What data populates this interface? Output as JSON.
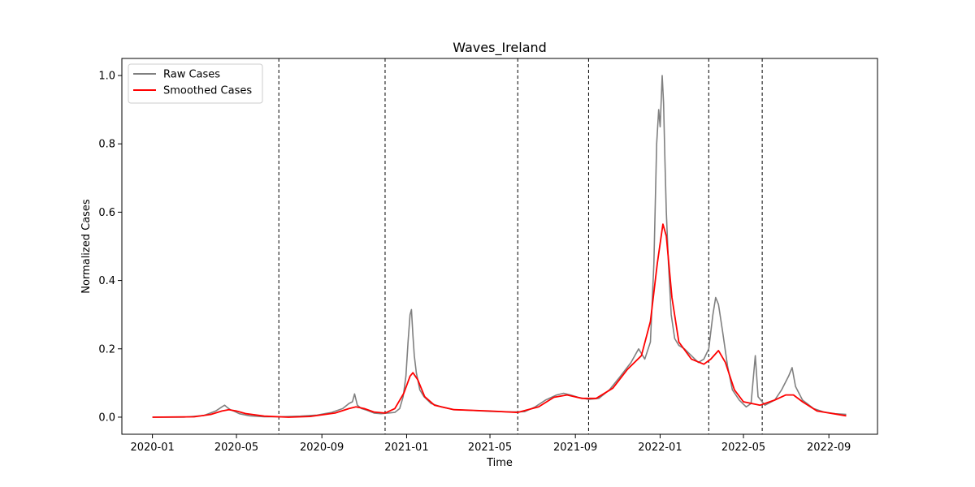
{
  "chart_data": {
    "type": "line",
    "title": "Waves_Ireland",
    "xlabel": "Time",
    "ylabel": "Normalized Cases",
    "x_range": [
      "2019-11-18",
      "2022-11-10"
    ],
    "ylim": [
      -0.05,
      1.05
    ],
    "grid": false,
    "legend_position": "top-left",
    "xticks": [
      "2020-01",
      "2020-05",
      "2020-09",
      "2021-01",
      "2021-05",
      "2021-09",
      "2022-01",
      "2022-05",
      "2022-09"
    ],
    "yticks": [
      "0.0",
      "0.2",
      "0.4",
      "0.6",
      "0.8",
      "1.0"
    ],
    "wave_boundaries": [
      "2020-07-01",
      "2020-12-01",
      "2021-06-10",
      "2021-09-20",
      "2022-03-12",
      "2022-05-28"
    ],
    "series": [
      {
        "name": "Raw Cases",
        "color": "#808080",
        "points": [
          [
            "2020-01-01",
            0.0
          ],
          [
            "2020-02-15",
            0.0
          ],
          [
            "2020-03-15",
            0.005
          ],
          [
            "2020-04-01",
            0.018
          ],
          [
            "2020-04-10",
            0.03
          ],
          [
            "2020-04-14",
            0.035
          ],
          [
            "2020-04-18",
            0.028
          ],
          [
            "2020-04-22",
            0.022
          ],
          [
            "2020-04-28",
            0.017
          ],
          [
            "2020-05-05",
            0.01
          ],
          [
            "2020-05-20",
            0.004
          ],
          [
            "2020-06-10",
            0.001
          ],
          [
            "2020-07-01",
            0.001
          ],
          [
            "2020-08-01",
            0.003
          ],
          [
            "2020-08-25",
            0.006
          ],
          [
            "2020-09-15",
            0.014
          ],
          [
            "2020-10-01",
            0.025
          ],
          [
            "2020-10-10",
            0.04
          ],
          [
            "2020-10-15",
            0.045
          ],
          [
            "2020-10-18",
            0.068
          ],
          [
            "2020-10-22",
            0.035
          ],
          [
            "2020-10-28",
            0.025
          ],
          [
            "2020-11-05",
            0.02
          ],
          [
            "2020-11-15",
            0.012
          ],
          [
            "2020-11-25",
            0.01
          ],
          [
            "2020-12-05",
            0.012
          ],
          [
            "2020-12-15",
            0.014
          ],
          [
            "2020-12-22",
            0.025
          ],
          [
            "2020-12-27",
            0.06
          ],
          [
            "2020-12-31",
            0.12
          ],
          [
            "2021-01-03",
            0.22
          ],
          [
            "2021-01-06",
            0.3
          ],
          [
            "2021-01-08",
            0.315
          ],
          [
            "2021-01-10",
            0.24
          ],
          [
            "2021-01-12",
            0.18
          ],
          [
            "2021-01-15",
            0.13
          ],
          [
            "2021-01-20",
            0.08
          ],
          [
            "2021-01-26",
            0.06
          ],
          [
            "2021-02-05",
            0.04
          ],
          [
            "2021-02-20",
            0.03
          ],
          [
            "2021-03-10",
            0.022
          ],
          [
            "2021-04-01",
            0.02
          ],
          [
            "2021-05-01",
            0.017
          ],
          [
            "2021-06-01",
            0.015
          ],
          [
            "2021-06-20",
            0.016
          ],
          [
            "2021-07-05",
            0.03
          ],
          [
            "2021-07-20",
            0.05
          ],
          [
            "2021-08-05",
            0.065
          ],
          [
            "2021-08-15",
            0.07
          ],
          [
            "2021-08-25",
            0.065
          ],
          [
            "2021-09-05",
            0.058
          ],
          [
            "2021-09-20",
            0.052
          ],
          [
            "2021-10-05",
            0.055
          ],
          [
            "2021-10-20",
            0.08
          ],
          [
            "2021-11-05",
            0.12
          ],
          [
            "2021-11-20",
            0.16
          ],
          [
            "2021-12-01",
            0.2
          ],
          [
            "2021-12-10",
            0.17
          ],
          [
            "2021-12-18",
            0.22
          ],
          [
            "2021-12-23",
            0.45
          ],
          [
            "2021-12-27",
            0.8
          ],
          [
            "2021-12-30",
            0.9
          ],
          [
            "2022-01-01",
            0.85
          ],
          [
            "2022-01-03",
            0.95
          ],
          [
            "2022-01-04",
            1.0
          ],
          [
            "2022-01-06",
            0.92
          ],
          [
            "2022-01-08",
            0.75
          ],
          [
            "2022-01-10",
            0.6
          ],
          [
            "2022-01-13",
            0.45
          ],
          [
            "2022-01-17",
            0.3
          ],
          [
            "2022-01-22",
            0.23
          ],
          [
            "2022-01-28",
            0.21
          ],
          [
            "2022-02-05",
            0.2
          ],
          [
            "2022-02-15",
            0.18
          ],
          [
            "2022-02-25",
            0.16
          ],
          [
            "2022-03-05",
            0.17
          ],
          [
            "2022-03-12",
            0.2
          ],
          [
            "2022-03-18",
            0.3
          ],
          [
            "2022-03-22",
            0.35
          ],
          [
            "2022-03-26",
            0.33
          ],
          [
            "2022-04-01",
            0.25
          ],
          [
            "2022-04-08",
            0.15
          ],
          [
            "2022-04-15",
            0.08
          ],
          [
            "2022-04-25",
            0.05
          ],
          [
            "2022-05-05",
            0.03
          ],
          [
            "2022-05-12",
            0.04
          ],
          [
            "2022-05-18",
            0.18
          ],
          [
            "2022-05-22",
            0.06
          ],
          [
            "2022-06-01",
            0.035
          ],
          [
            "2022-06-15",
            0.05
          ],
          [
            "2022-06-25",
            0.08
          ],
          [
            "2022-07-05",
            0.12
          ],
          [
            "2022-07-10",
            0.145
          ],
          [
            "2022-07-15",
            0.09
          ],
          [
            "2022-07-25",
            0.05
          ],
          [
            "2022-08-10",
            0.025
          ],
          [
            "2022-08-25",
            0.015
          ],
          [
            "2022-09-10",
            0.01
          ],
          [
            "2022-09-26",
            0.008
          ]
        ]
      },
      {
        "name": "Smoothed Cases",
        "color": "#ff0000",
        "points": [
          [
            "2020-01-01",
            0.0
          ],
          [
            "2020-03-01",
            0.001
          ],
          [
            "2020-03-25",
            0.008
          ],
          [
            "2020-04-10",
            0.018
          ],
          [
            "2020-04-20",
            0.022
          ],
          [
            "2020-05-01",
            0.018
          ],
          [
            "2020-05-15",
            0.01
          ],
          [
            "2020-06-10",
            0.003
          ],
          [
            "2020-07-15",
            0.0
          ],
          [
            "2020-08-15",
            0.002
          ],
          [
            "2020-09-20",
            0.012
          ],
          [
            "2020-10-10",
            0.025
          ],
          [
            "2020-10-20",
            0.03
          ],
          [
            "2020-11-01",
            0.025
          ],
          [
            "2020-11-15",
            0.015
          ],
          [
            "2020-12-01",
            0.012
          ],
          [
            "2020-12-15",
            0.025
          ],
          [
            "2020-12-28",
            0.07
          ],
          [
            "2021-01-06",
            0.12
          ],
          [
            "2021-01-10",
            0.13
          ],
          [
            "2021-01-17",
            0.11
          ],
          [
            "2021-01-27",
            0.06
          ],
          [
            "2021-02-10",
            0.035
          ],
          [
            "2021-03-10",
            0.022
          ],
          [
            "2021-05-01",
            0.018
          ],
          [
            "2021-06-10",
            0.014
          ],
          [
            "2021-07-10",
            0.03
          ],
          [
            "2021-08-01",
            0.058
          ],
          [
            "2021-08-20",
            0.065
          ],
          [
            "2021-09-10",
            0.055
          ],
          [
            "2021-10-01",
            0.055
          ],
          [
            "2021-10-25",
            0.085
          ],
          [
            "2021-11-15",
            0.14
          ],
          [
            "2021-12-05",
            0.18
          ],
          [
            "2021-12-18",
            0.28
          ],
          [
            "2021-12-28",
            0.45
          ],
          [
            "2022-01-05",
            0.565
          ],
          [
            "2022-01-10",
            0.53
          ],
          [
            "2022-01-18",
            0.35
          ],
          [
            "2022-01-28",
            0.22
          ],
          [
            "2022-02-15",
            0.17
          ],
          [
            "2022-03-05",
            0.155
          ],
          [
            "2022-03-15",
            0.17
          ],
          [
            "2022-03-26",
            0.195
          ],
          [
            "2022-04-05",
            0.16
          ],
          [
            "2022-04-18",
            0.08
          ],
          [
            "2022-05-01",
            0.045
          ],
          [
            "2022-05-25",
            0.035
          ],
          [
            "2022-06-15",
            0.05
          ],
          [
            "2022-07-01",
            0.065
          ],
          [
            "2022-07-12",
            0.065
          ],
          [
            "2022-07-25",
            0.045
          ],
          [
            "2022-08-15",
            0.018
          ],
          [
            "2022-09-26",
            0.004
          ]
        ]
      }
    ]
  }
}
